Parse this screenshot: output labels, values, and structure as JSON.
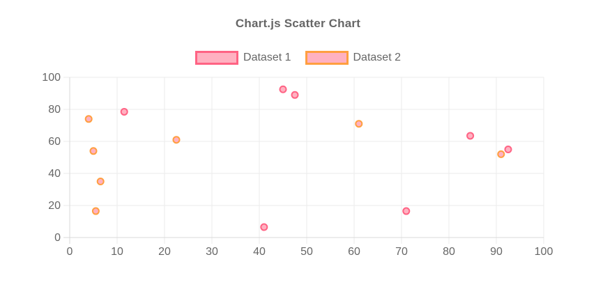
{
  "chart": {
    "title": "Chart.js Scatter Chart",
    "title_color": "#666666",
    "text_color": "#666666",
    "grid_color": "#ebebeb",
    "axis_border_color": "#d9d9d9",
    "background": "#ffffff"
  },
  "chart_data": {
    "type": "scatter",
    "title": "Chart.js Scatter Chart",
    "xlabel": "",
    "ylabel": "",
    "xlim": [
      0,
      100
    ],
    "ylim": [
      0,
      100
    ],
    "x_ticks": [
      "0",
      "10",
      "20",
      "30",
      "40",
      "50",
      "60",
      "70",
      "80",
      "90",
      "100"
    ],
    "y_ticks": [
      "0",
      "20",
      "40",
      "60",
      "80",
      "100"
    ],
    "grid": true,
    "legend_position": "top",
    "series": [
      {
        "name": "Dataset 1",
        "border_color": "#ff6384",
        "fill_color": "#ffb1c1",
        "points": [
          {
            "x": 11.5,
            "y": 78.5
          },
          {
            "x": 41,
            "y": 6.5
          },
          {
            "x": 45,
            "y": 92.5
          },
          {
            "x": 47.5,
            "y": 89
          },
          {
            "x": 71,
            "y": 16.5
          },
          {
            "x": 84.5,
            "y": 63.5
          },
          {
            "x": 92.5,
            "y": 55
          }
        ]
      },
      {
        "name": "Dataset 2",
        "border_color": "#ff9f40",
        "fill_color": "#ffb1c1",
        "points": [
          {
            "x": 4,
            "y": 74
          },
          {
            "x": 5,
            "y": 54
          },
          {
            "x": 5.5,
            "y": 16.5
          },
          {
            "x": 6.5,
            "y": 35
          },
          {
            "x": 22.5,
            "y": 61
          },
          {
            "x": 61,
            "y": 71
          },
          {
            "x": 91,
            "y": 52
          }
        ]
      }
    ]
  }
}
